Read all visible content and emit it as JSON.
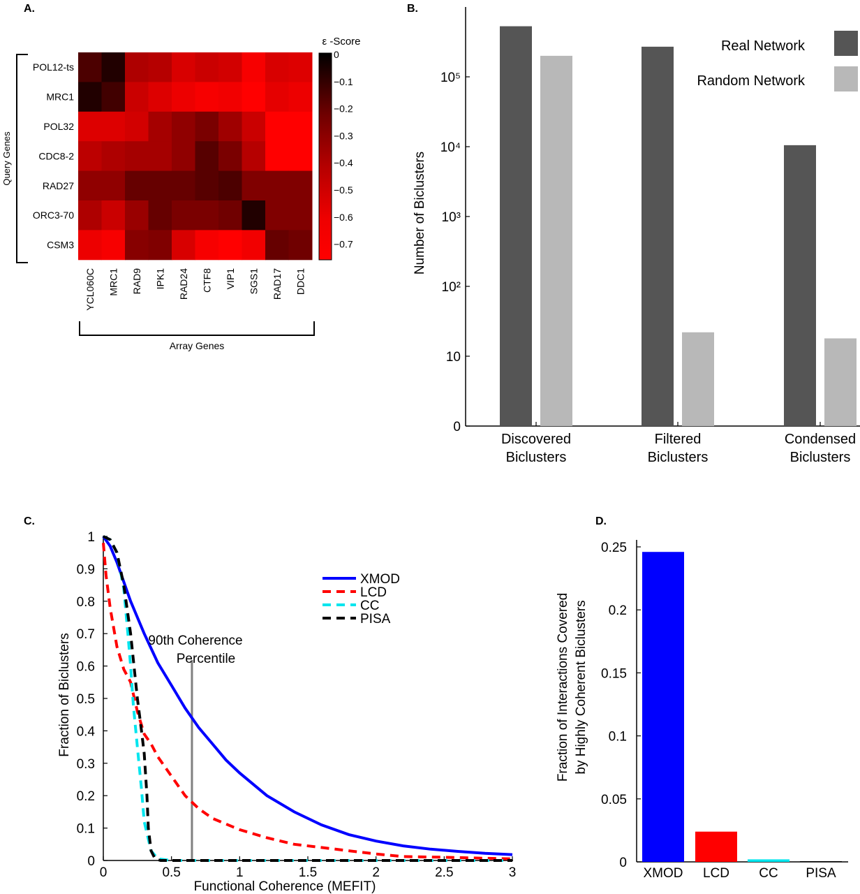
{
  "panel_labels": {
    "a": "A.",
    "b": "B.",
    "c": "C.",
    "d": "D."
  },
  "chart_data": [
    {
      "id": "A",
      "type": "heatmap",
      "title": "ε -Score",
      "ylabel": "Query Genes",
      "xlabel": "Array Genes",
      "rows": [
        "POL12-ts",
        "MRC1",
        "POL32",
        "CDC8-2",
        "RAD27",
        "ORC3-70",
        "CSM3"
      ],
      "columns": [
        "YCL060C",
        "MRC1",
        "RAD9",
        "IPK1",
        "RAD24",
        "CTF8",
        "VIP1",
        "SGS1",
        "RAD17",
        "DDC1"
      ],
      "values": [
        [
          -0.15,
          -0.05,
          -0.45,
          -0.48,
          -0.6,
          -0.55,
          -0.58,
          -0.72,
          -0.6,
          -0.62
        ],
        [
          -0.05,
          -0.12,
          -0.55,
          -0.62,
          -0.68,
          -0.72,
          -0.7,
          -0.75,
          -0.65,
          -0.68
        ],
        [
          -0.62,
          -0.62,
          -0.58,
          -0.42,
          -0.35,
          -0.28,
          -0.4,
          -0.55,
          -0.82,
          -0.82
        ],
        [
          -0.5,
          -0.45,
          -0.42,
          -0.42,
          -0.35,
          -0.18,
          -0.28,
          -0.48,
          -0.8,
          -0.78
        ],
        [
          -0.35,
          -0.35,
          -0.22,
          -0.22,
          -0.22,
          -0.18,
          -0.15,
          -0.3,
          -0.3,
          -0.3
        ],
        [
          -0.45,
          -0.55,
          -0.38,
          -0.22,
          -0.28,
          -0.28,
          -0.25,
          -0.05,
          -0.3,
          -0.3
        ],
        [
          -0.68,
          -0.72,
          -0.32,
          -0.3,
          -0.6,
          -0.72,
          -0.78,
          -0.7,
          -0.22,
          -0.25
        ]
      ],
      "colorbar": {
        "min": -0.75,
        "max": 0,
        "ticks": [
          "0",
          "−0.1",
          "−0.2",
          "−0.3",
          "−0.4",
          "−0.5",
          "−0.6",
          "−0.7"
        ]
      }
    },
    {
      "id": "B",
      "type": "bar",
      "ylabel": "Number of Biclusters",
      "yscale": "log",
      "ytick_labels": [
        "0",
        "10",
        "10²",
        "10³",
        "10⁴",
        "10⁵"
      ],
      "categories": [
        "Discovered\nBiclusters",
        "Filtered\nBiclusters",
        "Condensed\nBiclusters"
      ],
      "series": [
        {
          "name": "Real Network",
          "color": "#555555",
          "values": [
            530000,
            270000,
            10500
          ]
        },
        {
          "name": "Random Network",
          "color": "#b8b8b8",
          "values": [
            200000,
            22,
            18
          ]
        }
      ],
      "legend": "top-right"
    },
    {
      "id": "C",
      "type": "line",
      "xlabel": "Functional Coherence (MEFIT)",
      "ylabel": "Fraction of Biclusters",
      "xlim": [
        0,
        3
      ],
      "ylim": [
        0,
        1
      ],
      "xticks": [
        "0",
        "0.5",
        "1",
        "1.5",
        "2",
        "2.5",
        "3"
      ],
      "yticks": [
        "0",
        "0.1",
        "0.2",
        "0.3",
        "0.4",
        "0.5",
        "0.6",
        "0.7",
        "0.8",
        "0.9",
        "1"
      ],
      "annotation": {
        "text": "90th Coherence\nPercentile",
        "x": 0.65
      },
      "series": [
        {
          "name": "XMOD",
          "color": "#0000ff",
          "dash": false,
          "x": [
            0,
            0.05,
            0.1,
            0.15,
            0.2,
            0.3,
            0.4,
            0.5,
            0.6,
            0.7,
            0.8,
            0.9,
            1.0,
            1.2,
            1.4,
            1.6,
            1.8,
            2.0,
            2.2,
            2.4,
            2.6,
            2.8,
            3.0
          ],
          "y": [
            1.0,
            0.97,
            0.92,
            0.86,
            0.8,
            0.7,
            0.61,
            0.54,
            0.47,
            0.41,
            0.36,
            0.31,
            0.27,
            0.2,
            0.15,
            0.11,
            0.08,
            0.06,
            0.045,
            0.035,
            0.028,
            0.022,
            0.018
          ]
        },
        {
          "name": "LCD",
          "color": "#ff0000",
          "dash": true,
          "x": [
            0,
            0.02,
            0.05,
            0.1,
            0.15,
            0.2,
            0.25,
            0.3,
            0.35,
            0.4,
            0.5,
            0.6,
            0.7,
            0.8,
            1.0,
            1.2,
            1.4,
            1.6,
            1.8,
            2.0,
            2.2,
            2.5,
            2.8,
            3.0
          ],
          "y": [
            0.98,
            0.88,
            0.78,
            0.66,
            0.59,
            0.55,
            0.46,
            0.39,
            0.36,
            0.32,
            0.26,
            0.2,
            0.16,
            0.13,
            0.095,
            0.07,
            0.05,
            0.04,
            0.03,
            0.02,
            0.012,
            0.01,
            0.007,
            0.005
          ]
        },
        {
          "name": "CC",
          "color": "#00e5ee",
          "dash": true,
          "x": [
            0,
            0.05,
            0.1,
            0.15,
            0.18,
            0.2,
            0.22,
            0.25,
            0.28,
            0.3,
            0.35,
            0.4,
            0.5,
            3.0
          ],
          "y": [
            1.0,
            0.99,
            0.95,
            0.84,
            0.7,
            0.6,
            0.48,
            0.35,
            0.22,
            0.12,
            0.03,
            0.005,
            0,
            0
          ]
        },
        {
          "name": "PISA",
          "color": "#000000",
          "dash": true,
          "x": [
            0,
            0.05,
            0.1,
            0.15,
            0.2,
            0.25,
            0.28,
            0.3,
            0.32,
            0.33,
            0.35,
            0.38,
            0.42,
            0.5,
            3.0
          ],
          "y": [
            1.0,
            0.99,
            0.95,
            0.85,
            0.7,
            0.5,
            0.4,
            0.33,
            0.2,
            0.1,
            0.03,
            0.005,
            0,
            0,
            0
          ]
        }
      ],
      "legend": "top-right"
    },
    {
      "id": "D",
      "type": "bar",
      "ylabel": "Fraction of Interactions Covered\nby Highly Coherent Biclusters",
      "ylim": [
        0,
        0.25
      ],
      "yticks": [
        "0",
        "0.05",
        "0.1",
        "0.15",
        "0.2",
        "0.25"
      ],
      "categories": [
        "XMOD",
        "LCD",
        "CC",
        "PISA"
      ],
      "colors": [
        "#0000ff",
        "#ff0000",
        "#00e5ee",
        "#000000"
      ],
      "values": [
        0.246,
        0.024,
        0.002,
        0.0
      ]
    }
  ]
}
